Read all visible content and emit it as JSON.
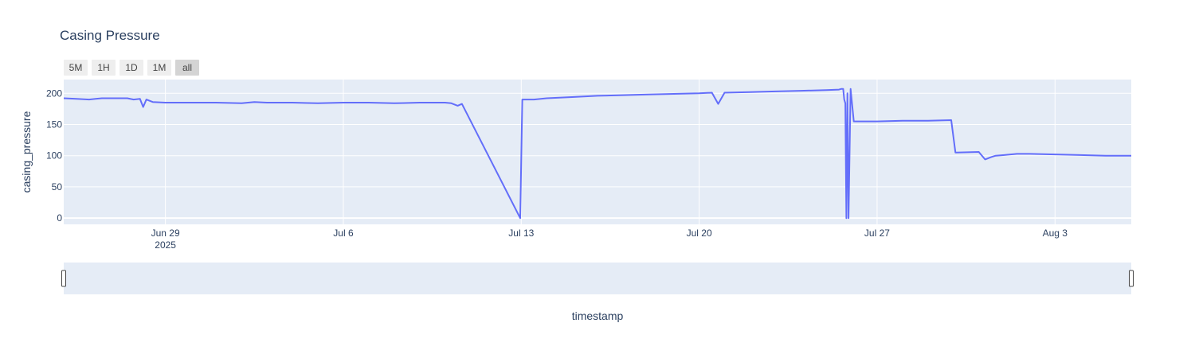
{
  "chart_data": {
    "type": "line",
    "title": "Casing Pressure",
    "xlabel": "timestamp",
    "ylabel": "casing_pressure",
    "x_range": [
      "2025-06-25",
      "2025-08-06"
    ],
    "ylim": [
      -10,
      222
    ],
    "yticks": [
      0,
      50,
      100,
      150,
      200
    ],
    "xticks": [
      {
        "date": "2025-06-29",
        "label": "Jun 29",
        "sublabel": "2025"
      },
      {
        "date": "2025-07-06",
        "label": "Jul 6",
        "sublabel": ""
      },
      {
        "date": "2025-07-13",
        "label": "Jul 13",
        "sublabel": ""
      },
      {
        "date": "2025-07-20",
        "label": "Jul 20",
        "sublabel": ""
      },
      {
        "date": "2025-07-27",
        "label": "Jul 27",
        "sublabel": ""
      },
      {
        "date": "2025-08-03",
        "label": "Aug 3",
        "sublabel": ""
      }
    ],
    "grid": true,
    "line_color": "#636efa",
    "plot_bg": "#e5ecf6",
    "series": [
      {
        "x": [
          "2025-06-25 00:00",
          "2025-06-25 12:00",
          "2025-06-26 00:00",
          "2025-06-26 06:00",
          "2025-06-26 12:00",
          "2025-06-27 00:00",
          "2025-06-27 12:00",
          "2025-06-27 18:00",
          "2025-06-28 00:00",
          "2025-06-28 03:00",
          "2025-06-28 06:00",
          "2025-06-28 12:00",
          "2025-06-29 00:00",
          "2025-06-30 00:00",
          "2025-07-01 00:00",
          "2025-07-02 00:00",
          "2025-07-02 12:00",
          "2025-07-03 00:00",
          "2025-07-04 00:00",
          "2025-07-05 00:00",
          "2025-07-06 00:00",
          "2025-07-07 00:00",
          "2025-07-08 00:00",
          "2025-07-09 00:00",
          "2025-07-10 00:00",
          "2025-07-10 06:00",
          "2025-07-10 12:00",
          "2025-07-10 16:00",
          "2025-07-12 23:00",
          "2025-07-13 01:00",
          "2025-07-13 12:00",
          "2025-07-14 00:00",
          "2025-07-15 00:00",
          "2025-07-16 00:00",
          "2025-07-17 00:00",
          "2025-07-18 00:00",
          "2025-07-19 00:00",
          "2025-07-20 00:00",
          "2025-07-20 12:00",
          "2025-07-20 18:00",
          "2025-07-21 00:00",
          "2025-07-22 00:00",
          "2025-07-23 00:00",
          "2025-07-24 00:00",
          "2025-07-25 00:00",
          "2025-07-25 12:00",
          "2025-07-25 14:00",
          "2025-07-25 16:00",
          "2025-07-25 17:00",
          "2025-07-25 18:00",
          "2025-07-25 19:00",
          "2025-07-25 20:00",
          "2025-07-25 21:00",
          "2025-07-25 23:00",
          "2025-07-26 02:00",
          "2025-07-26 06:00",
          "2025-07-27 00:00",
          "2025-07-28 00:00",
          "2025-07-29 00:00",
          "2025-07-29 22:00",
          "2025-07-30 02:00",
          "2025-07-30 03:00",
          "2025-07-31 00:00",
          "2025-07-31 06:00",
          "2025-07-31 12:00",
          "2025-07-31 16:00",
          "2025-08-01 00:00",
          "2025-08-01 12:00",
          "2025-08-02 00:00",
          "2025-08-03 00:00",
          "2025-08-04 00:00",
          "2025-08-05 00:00",
          "2025-08-06 00:00"
        ],
        "y": [
          192,
          191,
          190,
          191,
          192,
          192,
          192,
          190,
          191,
          178,
          190,
          186,
          185,
          185,
          185,
          184,
          186,
          185,
          185,
          184,
          185,
          185,
          184,
          185,
          185,
          184,
          180,
          183,
          0,
          190,
          190,
          192,
          194,
          196,
          197,
          198,
          199,
          200,
          201,
          183,
          201,
          202,
          203,
          204,
          205,
          206,
          207,
          207,
          190,
          184,
          0,
          200,
          0,
          207,
          155,
          155,
          155,
          156,
          156,
          157,
          105,
          105,
          106,
          94,
          98,
          100,
          101,
          103,
          103,
          102,
          101,
          100,
          100
        ]
      }
    ],
    "rangeselector": {
      "buttons": [
        "5M",
        "1H",
        "1D",
        "1M",
        "all"
      ],
      "active": "all"
    }
  }
}
